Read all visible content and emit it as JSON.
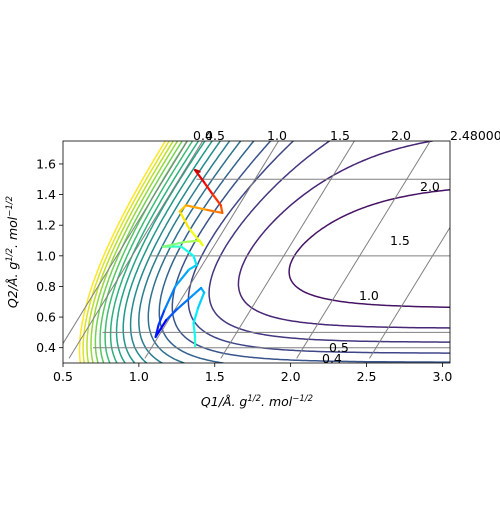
{
  "chart_data": {
    "type": "contour",
    "xlabel": "Q1/Å. g^{1/2}. mol^{-1/2}",
    "ylabel": "Q2/Å. g^{1/2}. mol^{-1/2}",
    "xlabel_parts": {
      "main": "Q1/Å. g",
      "s1": "1/2",
      "mid": ". mol",
      "s2": "−1/2"
    },
    "ylabel_parts": {
      "main": "Q2/Å. g",
      "s1": "1/2",
      "mid": ". mol",
      "s2": "−1/2"
    },
    "xlim": [
      0.5,
      3.05
    ],
    "ylim": [
      0.3,
      1.75
    ],
    "x_ticks": [
      "0.5",
      "1.0",
      "1.5",
      "2.0",
      "2.5",
      "3.0"
    ],
    "y_ticks": [
      "0.4",
      "0.6",
      "0.8",
      "1.0",
      "1.2",
      "1.4",
      "1.6"
    ],
    "x_tick_values": [
      0.5,
      1.0,
      1.5,
      2.0,
      2.5,
      3.0
    ],
    "y_tick_values": [
      0.4,
      0.6,
      0.8,
      1.0,
      1.2,
      1.4,
      1.6
    ],
    "secondary_grid": {
      "top_labels": [
        "0.4",
        "0.5",
        "1.0",
        "1.5",
        "2.0",
        "2.48000"
      ],
      "top_values": [
        0.4,
        0.5,
        1.0,
        1.5,
        2.0,
        2.48
      ],
      "right_labels": [
        "0.4",
        "0.5",
        "1.0",
        "1.5",
        "2.0"
      ],
      "right_values": [
        0.4,
        0.5,
        1.0,
        1.5,
        2.0
      ]
    },
    "contour_levels": 20,
    "colormap": [
      "#440154",
      "#482878",
      "#3e4989",
      "#31688e",
      "#26828e",
      "#1f9e89",
      "#35b779",
      "#6ece58",
      "#b5de2b",
      "#fde725"
    ],
    "trajectory": {
      "colormap": "jet",
      "points": [
        [
          1.37,
          0.41
        ],
        [
          1.37,
          0.47
        ],
        [
          1.36,
          0.56
        ],
        [
          1.39,
          0.66
        ],
        [
          1.43,
          0.76
        ],
        [
          1.41,
          0.79
        ],
        [
          1.33,
          0.72
        ],
        [
          1.25,
          0.65
        ],
        [
          1.18,
          0.58
        ],
        [
          1.11,
          0.47
        ],
        [
          1.13,
          0.55
        ],
        [
          1.17,
          0.65
        ],
        [
          1.24,
          0.8
        ],
        [
          1.33,
          0.91
        ],
        [
          1.38,
          0.94
        ],
        [
          1.36,
          1.0
        ],
        [
          1.28,
          1.06
        ],
        [
          1.21,
          1.06
        ],
        [
          1.16,
          1.06
        ],
        [
          1.3,
          1.09
        ],
        [
          1.4,
          1.1
        ],
        [
          1.42,
          1.07
        ],
        [
          1.33,
          1.18
        ],
        [
          1.27,
          1.29
        ],
        [
          1.31,
          1.33
        ],
        [
          1.45,
          1.3
        ],
        [
          1.55,
          1.28
        ],
        [
          1.54,
          1.33
        ],
        [
          1.48,
          1.41
        ],
        [
          1.43,
          1.48
        ],
        [
          1.37,
          1.56
        ],
        [
          1.4,
          1.55
        ]
      ]
    }
  }
}
